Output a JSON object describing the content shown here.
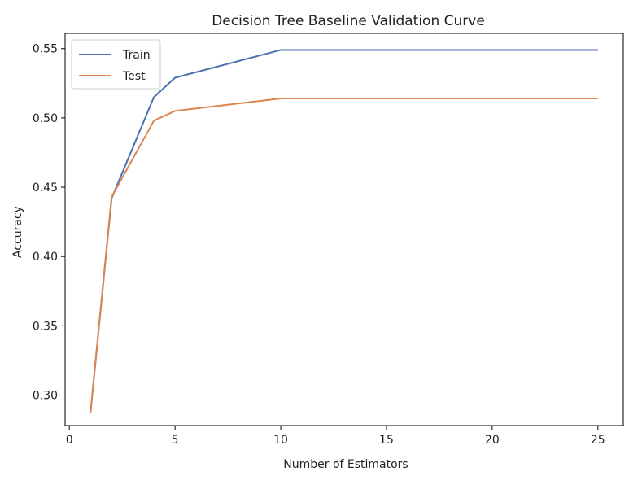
{
  "chart_data": {
    "type": "line",
    "title": "Decision Tree Baseline Validation Curve",
    "xlabel": "Number of Estimators",
    "ylabel": "Accuracy",
    "xlim": [
      -0.2,
      26.2
    ],
    "ylim": [
      0.278,
      0.561
    ],
    "xticks": [
      0,
      5,
      10,
      15,
      20,
      25
    ],
    "yticks": [
      0.3,
      0.35,
      0.4,
      0.45,
      0.5,
      0.55
    ],
    "ytick_labels": [
      "0.30",
      "0.35",
      "0.40",
      "0.45",
      "0.50",
      "0.55"
    ],
    "legend_position": "top-left",
    "grid": false,
    "series": [
      {
        "name": "Train",
        "color": "#4c72b0",
        "x": [
          1,
          2,
          4,
          5,
          10,
          25
        ],
        "y": [
          0.287,
          0.442,
          0.515,
          0.529,
          0.549,
          0.549
        ]
      },
      {
        "name": "Test",
        "color": "#dd8452",
        "x": [
          1,
          2,
          4,
          5,
          10,
          25
        ],
        "y": [
          0.287,
          0.443,
          0.498,
          0.505,
          0.514,
          0.514
        ]
      }
    ]
  }
}
